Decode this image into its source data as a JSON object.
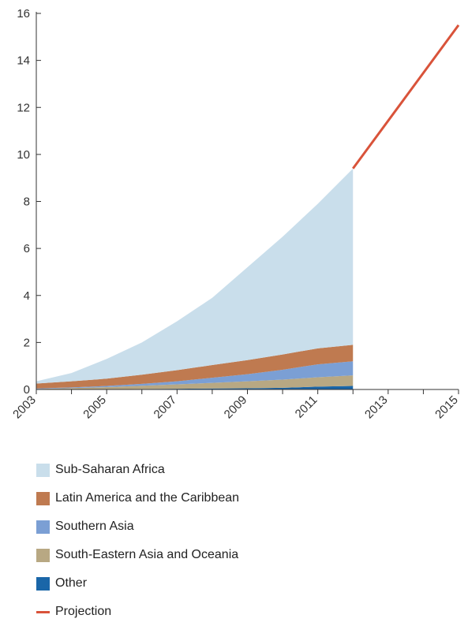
{
  "chart_data": {
    "type": "area",
    "x": [
      2003,
      2004,
      2005,
      2006,
      2007,
      2008,
      2009,
      2010,
      2011,
      2012
    ],
    "xticks": [
      2003,
      2005,
      2007,
      2009,
      2011,
      2013,
      2015
    ],
    "yticks": [
      0,
      2,
      4,
      6,
      8,
      10,
      12,
      14,
      16
    ],
    "xlim": [
      2003,
      2015
    ],
    "ylim": [
      0,
      16
    ],
    "grid": false,
    "legend_position": "bottom",
    "stacked": true,
    "series": [
      {
        "name": "Other",
        "color": "#1a66a8",
        "values": [
          0.0,
          0.01,
          0.01,
          0.02,
          0.03,
          0.04,
          0.05,
          0.07,
          0.12,
          0.15
        ]
      },
      {
        "name": "South-Eastern Asia and Oceania",
        "color": "#b8a883",
        "values": [
          0.02,
          0.05,
          0.09,
          0.14,
          0.19,
          0.24,
          0.3,
          0.35,
          0.4,
          0.45
        ]
      },
      {
        "name": "Southern Asia",
        "color": "#7b9fd4",
        "values": [
          0.02,
          0.03,
          0.05,
          0.08,
          0.13,
          0.22,
          0.3,
          0.42,
          0.55,
          0.6
        ]
      },
      {
        "name": "Latin America and the Caribbean",
        "color": "#bf7a50",
        "values": [
          0.21,
          0.26,
          0.31,
          0.39,
          0.47,
          0.54,
          0.6,
          0.65,
          0.68,
          0.7
        ]
      },
      {
        "name": "Sub-Saharan Africa",
        "color": "#c9deeb",
        "values": [
          0.1,
          0.35,
          0.84,
          1.37,
          2.08,
          2.86,
          3.95,
          5.01,
          6.15,
          7.5
        ]
      }
    ],
    "projection": {
      "name": "Projection",
      "color": "#d9533a",
      "x": [
        2012,
        2015
      ],
      "values": [
        9.4,
        15.5
      ]
    }
  },
  "legend": [
    {
      "label": "Sub-Saharan Africa",
      "color": "#c9deeb",
      "kind": "swatch"
    },
    {
      "label": "Latin America and the Caribbean",
      "color": "#bf7a50",
      "kind": "swatch"
    },
    {
      "label": "Southern Asia",
      "color": "#7b9fd4",
      "kind": "swatch"
    },
    {
      "label": "South-Eastern Asia and Oceania",
      "color": "#b8a883",
      "kind": "swatch"
    },
    {
      "label": "Other",
      "color": "#1a66a8",
      "kind": "swatch"
    },
    {
      "label": "Projection",
      "color": "#d9533a",
      "kind": "line"
    }
  ]
}
